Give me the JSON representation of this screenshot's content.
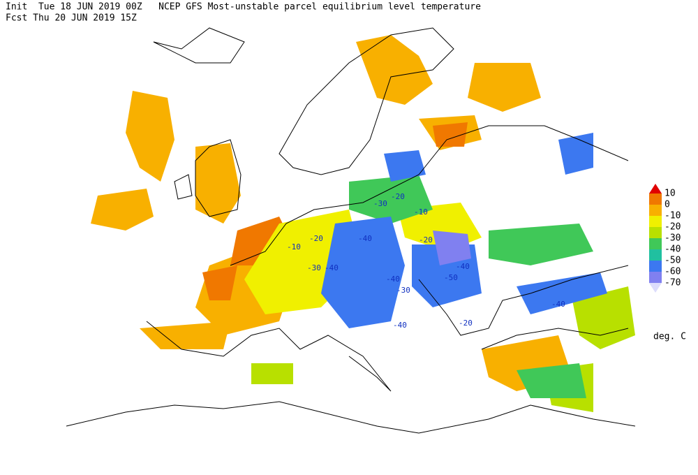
{
  "header": {
    "line1": "Init  Tue 18 JUN 2019 00Z   NCEP GFS Most-unstable parcel equilibrium level temperature",
    "line2": "Fcst Thu 20 JUN 2019 15Z"
  },
  "colorbar": {
    "levels": [
      10,
      0,
      -10,
      -20,
      -30,
      -40,
      -50,
      -60,
      -70
    ],
    "colors": [
      "#e00000",
      "#f07800",
      "#f8b000",
      "#f0f000",
      "#b8e000",
      "#40c858",
      "#20c0a0",
      "#3c78f0",
      "#8080f0",
      "#dcdcfc"
    ],
    "unit": "deg. C"
  },
  "contour_labels": [
    -20,
    -30,
    -10,
    -20,
    -40,
    -30,
    -40,
    -10,
    -20,
    -40,
    -50,
    -40,
    -30,
    -40,
    -20,
    -40
  ]
}
